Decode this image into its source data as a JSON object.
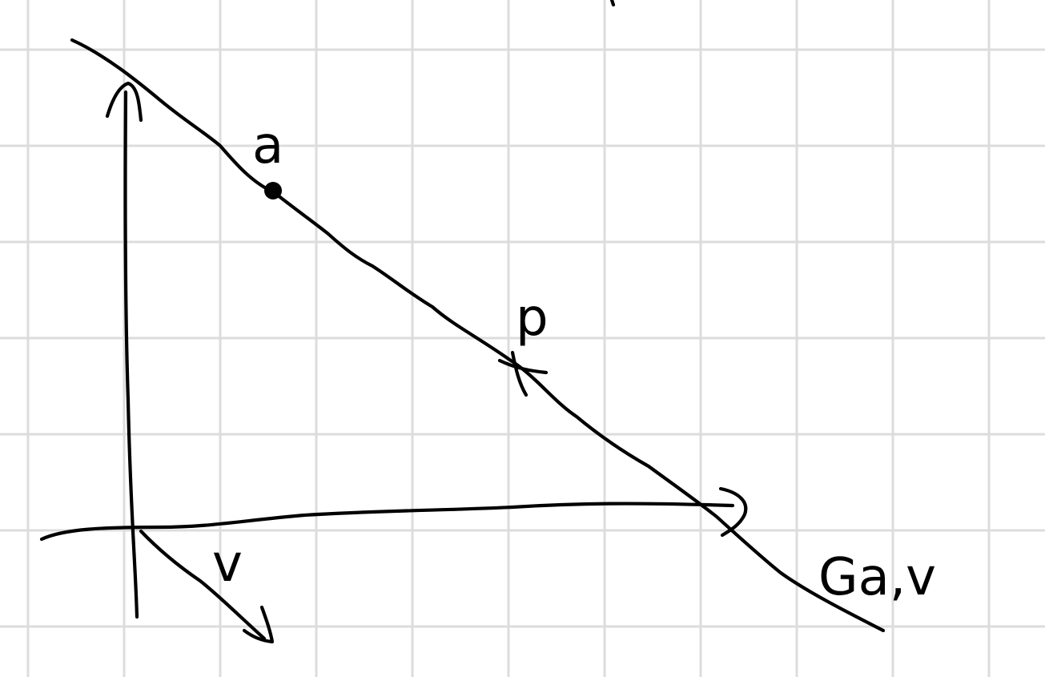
{
  "labels": {
    "point_a": "a",
    "point_p": "p",
    "vector_v": "v",
    "line_name": "Ga,v"
  },
  "colors": {
    "ink": "#000000",
    "grid": "#dcdcdc",
    "paper": "#ffffff"
  }
}
